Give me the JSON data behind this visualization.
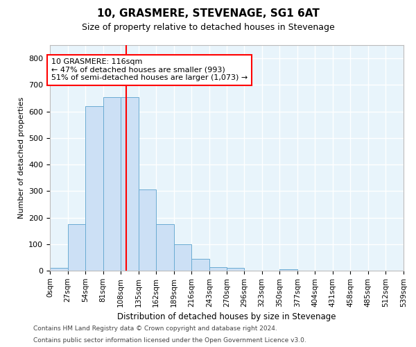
{
  "title": "10, GRASMERE, STEVENAGE, SG1 6AT",
  "subtitle": "Size of property relative to detached houses in Stevenage",
  "xlabel": "Distribution of detached houses by size in Stevenage",
  "ylabel": "Number of detached properties",
  "bar_color": "#cce0f5",
  "bar_edge_color": "#6aabd2",
  "background_color": "#e8f4fb",
  "grid_color": "#ffffff",
  "vline_x": 116,
  "vline_color": "red",
  "bin_edges": [
    0,
    27,
    54,
    81,
    108,
    135,
    162,
    189,
    216,
    243,
    270,
    296,
    323,
    350,
    377,
    404,
    431,
    458,
    485,
    512,
    539
  ],
  "bar_heights": [
    10,
    175,
    620,
    655,
    655,
    305,
    175,
    100,
    45,
    12,
    10,
    0,
    0,
    5,
    0,
    0,
    0,
    0,
    0,
    0
  ],
  "annotation_line1": "10 GRASMERE: 116sqm",
  "annotation_line2": "← 47% of detached houses are smaller (993)",
  "annotation_line3": "51% of semi-detached houses are larger (1,073) →",
  "annotation_box_color": "white",
  "annotation_box_edge_color": "red",
  "ylim": [
    0,
    850
  ],
  "yticks": [
    0,
    100,
    200,
    300,
    400,
    500,
    600,
    700,
    800
  ],
  "footnote1": "Contains HM Land Registry data © Crown copyright and database right 2024.",
  "footnote2": "Contains public sector information licensed under the Open Government Licence v3.0."
}
